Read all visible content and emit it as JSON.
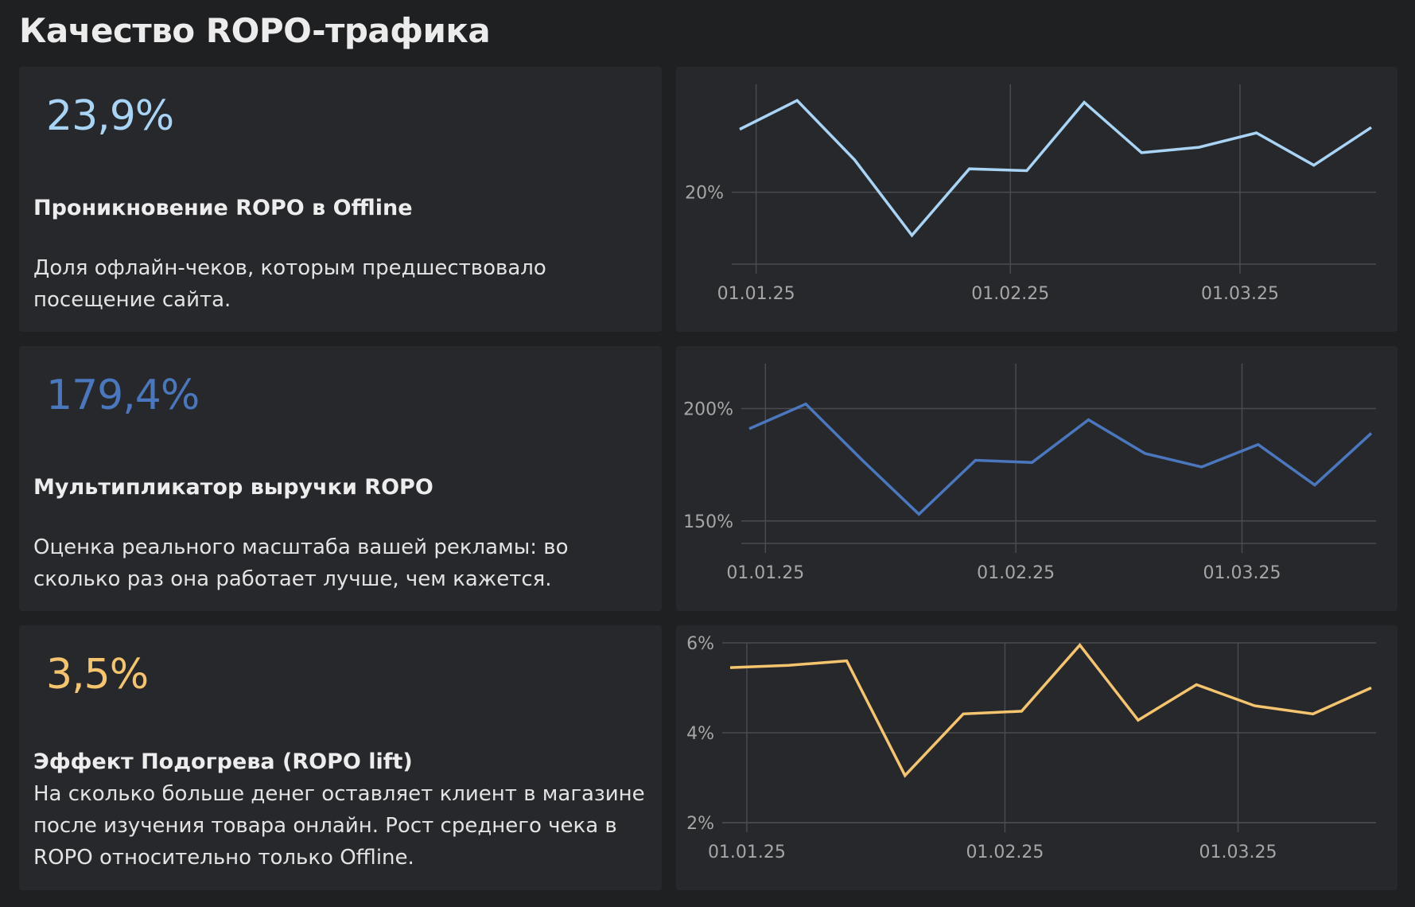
{
  "page": {
    "title": "Качество ROPO-трафика"
  },
  "metrics": [
    {
      "value": "23,9%",
      "title": "Проникновение ROPO в Offline",
      "description": "Доля офлайн-чеков, которым предшествовало посещение сайта.",
      "color": "#a9d4f5"
    },
    {
      "value": "179,4%",
      "title": "Мультипликатор выручки ROPO",
      "description": "Оценка реального масштаба вашей рекламы: во сколько раз она работает лучше, чем кажется.",
      "color": "#4a77bd"
    },
    {
      "value": "3,5%",
      "title": "Эффект Подогрева (ROPO lift)",
      "description": "На сколько больше денег оставляет клиент в магазине после изучения товара онлайн. Рост среднего чека в ROPO относительно только Offline.",
      "color": "#f5c46e"
    }
  ],
  "chart_data": [
    {
      "type": "line",
      "x": [
        "30.12.24",
        "06.01.25",
        "13.01.25",
        "20.01.25",
        "27.01.25",
        "03.02.25",
        "10.02.25",
        "17.02.25",
        "24.02.25",
        "03.03.25",
        "10.03.25",
        "17.03.25"
      ],
      "values": [
        23.5,
        25.1,
        21.8,
        17.6,
        21.3,
        21.2,
        25.0,
        22.2,
        22.5,
        23.3,
        21.5,
        23.6
      ],
      "ylim": [
        16,
        26
      ],
      "yticks": [
        20
      ],
      "ytick_labels": [
        "20%"
      ],
      "xtick_dates": [
        "01.01.25",
        "01.02.25",
        "01.03.25"
      ],
      "xtick_labels": [
        "01.01.25",
        "01.02.25",
        "01.03.25"
      ],
      "grid": true,
      "color": "#a9d4f5"
    },
    {
      "type": "line",
      "x": [
        "30.12.24",
        "06.01.25",
        "13.01.25",
        "20.01.25",
        "27.01.25",
        "03.02.25",
        "10.02.25",
        "17.02.25",
        "24.02.25",
        "03.03.25",
        "10.03.25",
        "17.03.25"
      ],
      "values": [
        191,
        202,
        177,
        153,
        177,
        176,
        195,
        180,
        174,
        184,
        166,
        189
      ],
      "ylim": [
        140,
        220
      ],
      "yticks": [
        150,
        200
      ],
      "ytick_labels": [
        "150%",
        "200%"
      ],
      "xtick_dates": [
        "01.01.25",
        "01.02.25",
        "01.03.25"
      ],
      "xtick_labels": [
        "01.01.25",
        "01.02.25",
        "01.03.25"
      ],
      "grid": true,
      "color": "#4a77bd"
    },
    {
      "type": "line",
      "x": [
        "30.12.24",
        "06.01.25",
        "13.01.25",
        "20.01.25",
        "27.01.25",
        "03.02.25",
        "10.02.25",
        "17.02.25",
        "24.02.25",
        "03.03.25",
        "10.03.25",
        "17.03.25"
      ],
      "values": [
        5.45,
        5.5,
        5.6,
        3.05,
        4.42,
        4.48,
        5.95,
        4.28,
        5.07,
        4.6,
        4.42,
        5.0
      ],
      "ylim": [
        2,
        6
      ],
      "yticks": [
        2,
        4,
        6
      ],
      "ytick_labels": [
        "2%",
        "4%",
        "6%"
      ],
      "xtick_dates": [
        "01.01.25",
        "01.02.25",
        "01.03.25"
      ],
      "xtick_labels": [
        "01.01.25",
        "01.02.25",
        "01.03.25"
      ],
      "grid": true,
      "color": "#f5c46e"
    }
  ]
}
